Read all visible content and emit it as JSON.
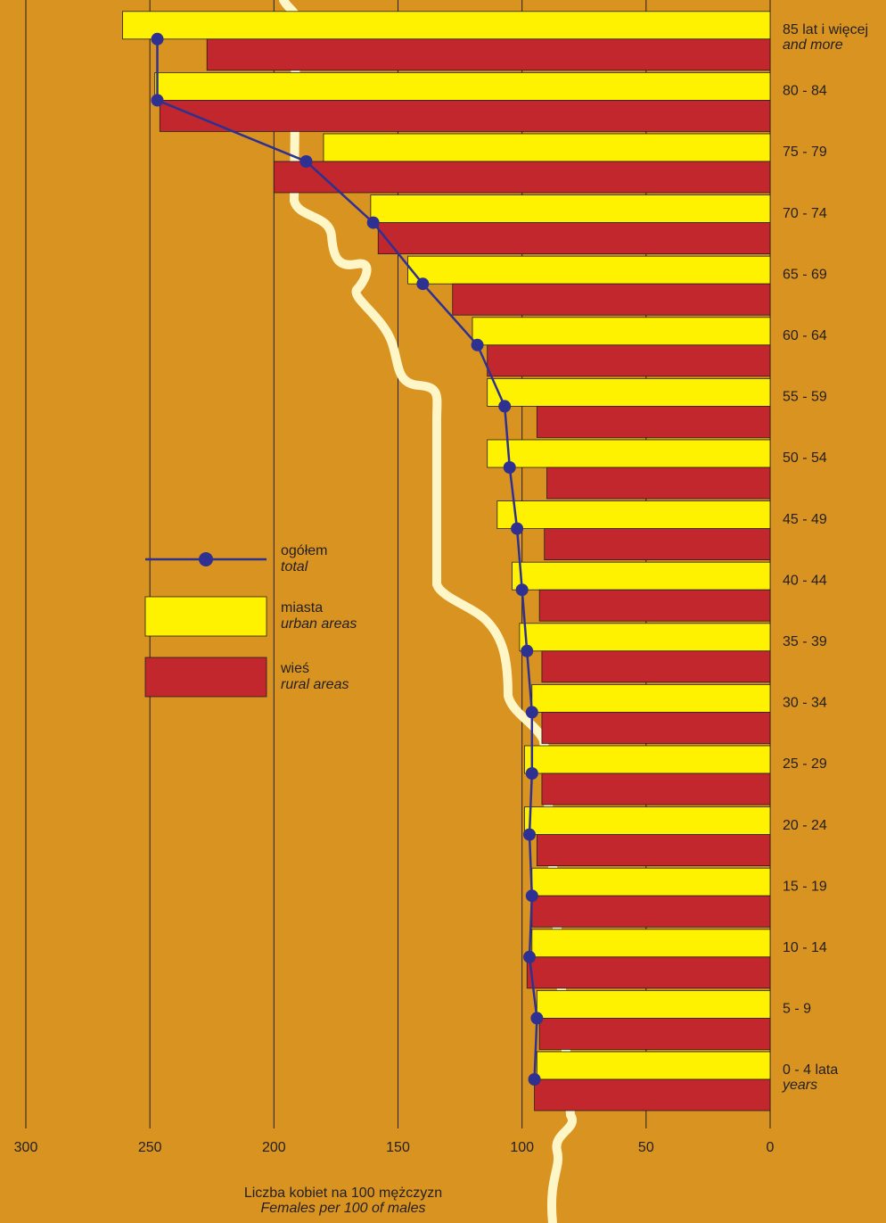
{
  "chart_data": {
    "type": "bar",
    "orientation": "horizontal",
    "xlabel": "Liczba kobiet na 100 mężczyzn",
    "xlabel_en": "Females per 100 of males",
    "categories": [
      "0 - 4 lata",
      "5 - 9",
      "10 - 14",
      "15 - 19",
      "20 - 24",
      "25 - 29",
      "30 - 34",
      "35 - 39",
      "40 - 44",
      "45 - 49",
      "50 - 54",
      "55 - 59",
      "60 - 64",
      "65 - 69",
      "70 - 74",
      "75 - 79",
      "80 - 84",
      "85 lat i więcej"
    ],
    "category_sublabels": [
      "years",
      null,
      null,
      null,
      null,
      null,
      null,
      null,
      null,
      null,
      null,
      null,
      null,
      null,
      null,
      null,
      null,
      "and more"
    ],
    "series": [
      {
        "name": "miasta",
        "subname": "urban areas",
        "kind": "bar",
        "color": "#fff200",
        "values": [
          94,
          94,
          96,
          96,
          99,
          99,
          96,
          101,
          104,
          110,
          114,
          114,
          120,
          146,
          161,
          180,
          248,
          261
        ]
      },
      {
        "name": "wieś",
        "subname": "rural areas",
        "kind": "bar",
        "color": "#c1272d",
        "values": [
          95,
          93,
          98,
          96,
          94,
          92,
          92,
          92,
          93,
          91,
          90,
          94,
          114,
          128,
          158,
          200,
          246,
          227
        ]
      },
      {
        "name": "ogółem",
        "subname": "total",
        "kind": "line",
        "color": "#2e3192",
        "values": [
          95,
          94,
          97,
          96,
          97,
          96,
          96,
          98,
          100,
          102,
          105,
          107,
          118,
          140,
          160,
          187,
          247,
          247
        ]
      }
    ],
    "xlim": [
      300,
      0
    ],
    "xticks": [
      300,
      250,
      200,
      150,
      100,
      50,
      0
    ],
    "grid": true
  }
}
